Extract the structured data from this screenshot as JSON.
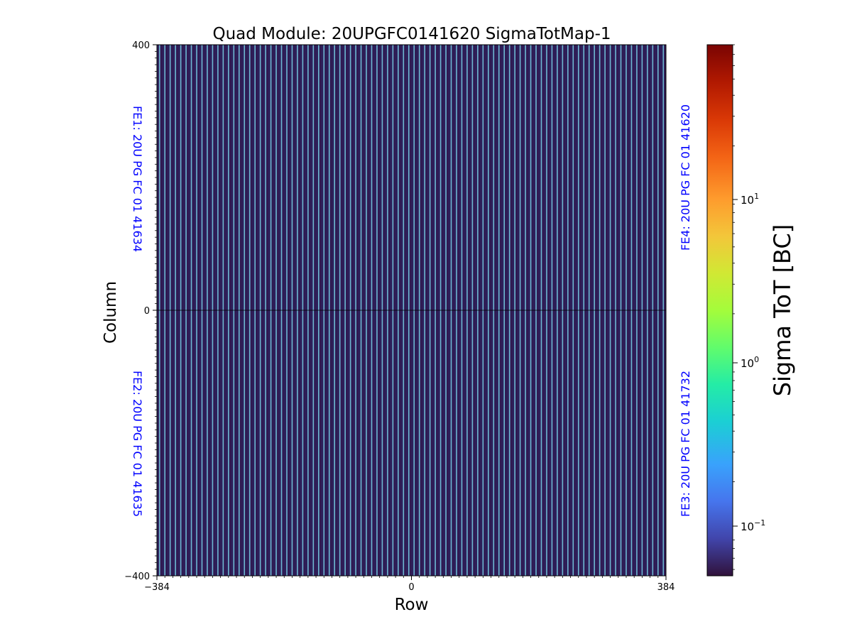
{
  "chart_data": {
    "type": "heatmap",
    "title": "Quad Module: 20UPGFC0141620 SigmaTotMap-1",
    "xlabel": "Row",
    "ylabel": "Column",
    "xlim": [
      -384,
      384
    ],
    "ylim": [
      -400,
      400
    ],
    "x_ticks": [
      -384,
      0,
      384
    ],
    "x_tick_labels": [
      "−384",
      "0",
      "384"
    ],
    "y_ticks": [
      -400,
      0,
      400
    ],
    "y_tick_labels": [
      "−400",
      "0",
      "400"
    ],
    "column_period": 8,
    "background_value": 0.08,
    "stripe_value": 0.6,
    "colormap": "turbo",
    "colorbar": {
      "label": "Sigma ToT [BC]",
      "scale": "log",
      "vmin": 0.055,
      "vmax": 80,
      "major_ticks": [
        0.1,
        1,
        10
      ],
      "tick_labels": [
        {
          "base": "10",
          "exp": "−1"
        },
        {
          "base": "10",
          "exp": "0"
        },
        {
          "base": "10",
          "exp": "1"
        }
      ]
    },
    "chip_labels": [
      {
        "id": "fe1",
        "text": "FE1: 20U PG FC 01 41634",
        "position": "top-left"
      },
      {
        "id": "fe2",
        "text": "FE2: 20U PG FC 01 41635",
        "position": "bottom-left"
      },
      {
        "id": "fe3",
        "text": "FE3: 20U PG FC 01 41732",
        "position": "bottom-right"
      },
      {
        "id": "fe4",
        "text": "FE4: 20U PG FC 01 41620",
        "position": "top-right"
      }
    ],
    "chip_label_color": "#0000ff"
  }
}
